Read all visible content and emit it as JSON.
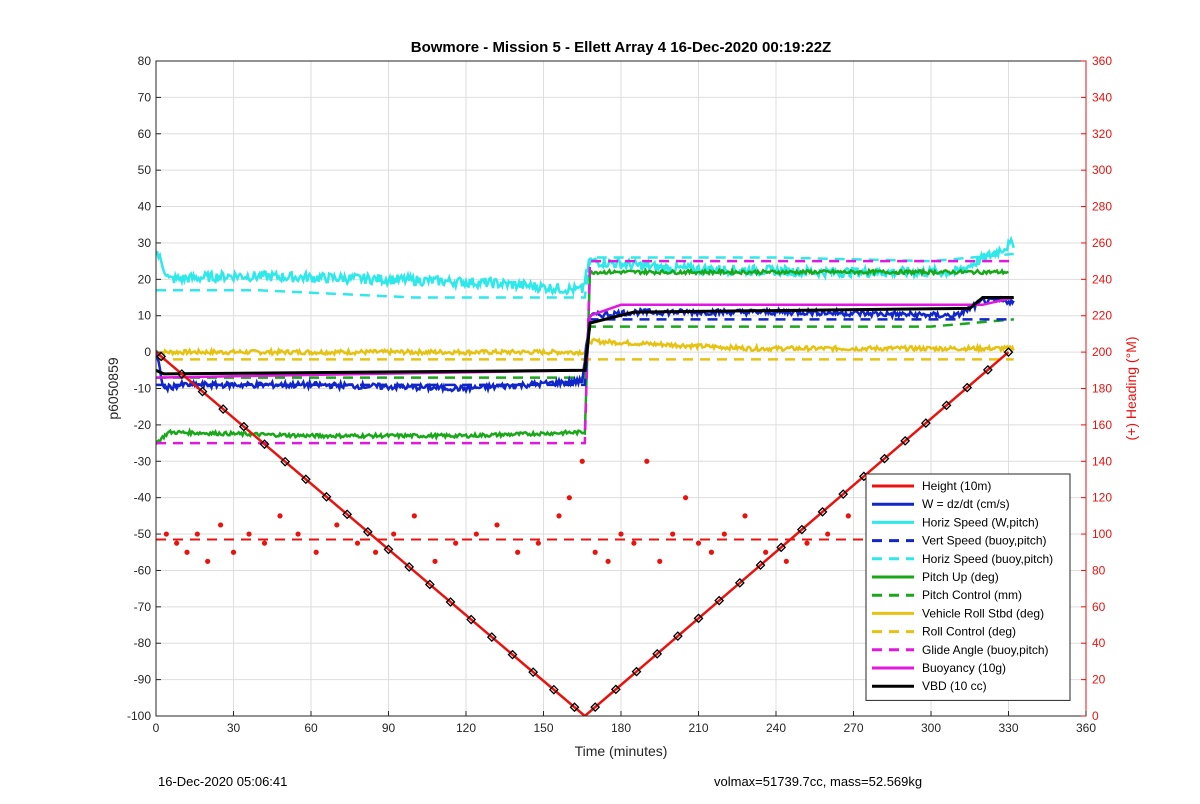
{
  "chart_data": {
    "type": "line",
    "title": "Bowmore - Mission 5 - Ellett Array 4 16-Dec-2020 00:19:22Z",
    "xlabel": "Time (minutes)",
    "ylabel": "p6050859",
    "ylabel_right": "(+) Heading (°M)",
    "xlim": [
      0,
      360
    ],
    "ylim": [
      -100,
      80
    ],
    "ylim_right": [
      0,
      360
    ],
    "xticks": [
      "0",
      "30",
      "60",
      "90",
      "120",
      "150",
      "180",
      "210",
      "240",
      "270",
      "300",
      "330",
      "360"
    ],
    "yticks": [
      "-100",
      "-90",
      "-80",
      "-70",
      "-60",
      "-50",
      "-40",
      "-30",
      "-20",
      "-10",
      "0",
      "10",
      "20",
      "30",
      "40",
      "50",
      "60",
      "70",
      "80"
    ],
    "yticks_right": [
      "0",
      "20",
      "40",
      "60",
      "80",
      "100",
      "120",
      "140",
      "160",
      "180",
      "200",
      "220",
      "240",
      "260",
      "280",
      "300",
      "320",
      "340",
      "360"
    ],
    "grid": true,
    "legend_position": "lower-right",
    "legend": [
      {
        "label": "Height (10m)",
        "color": "#e8130f",
        "style": "solid"
      },
      {
        "label": "W = dz/dt (cm/s)",
        "color": "#1026c8",
        "style": "solid"
      },
      {
        "label": "Horiz Speed (W,pitch)",
        "color": "#2ee8ea",
        "style": "solid"
      },
      {
        "label": "Vert Speed (buoy,pitch)",
        "color": "#1026c8",
        "style": "dashed"
      },
      {
        "label": "Horiz Speed (buoy,pitch)",
        "color": "#2ee8ea",
        "style": "dashed"
      },
      {
        "label": "Pitch Up (deg)",
        "color": "#1aa81a",
        "style": "solid"
      },
      {
        "label": "Pitch Control (mm)",
        "color": "#1aa81a",
        "style": "dashed"
      },
      {
        "label": "Vehicle Roll Stbd (deg)",
        "color": "#e6c212",
        "style": "solid"
      },
      {
        "label": "Roll Control (deg)",
        "color": "#e6c212",
        "style": "dashed"
      },
      {
        "label": "Glide Angle (buoy,pitch)",
        "color": "#e018e0",
        "style": "dashed"
      },
      {
        "label": "Buoyancy (10g)",
        "color": "#e018e0",
        "style": "solid"
      },
      {
        "label": "VBD (10 cc)",
        "color": "#000000",
        "style": "solid"
      }
    ],
    "series": [
      {
        "name": "Height (10m)",
        "axis": "left",
        "x": [
          0,
          166,
          330
        ],
        "y": [
          0,
          -100,
          0
        ]
      },
      {
        "name": "W = dz/dt (cm/s)",
        "axis": "left",
        "x": [
          0,
          3,
          10,
          60,
          120,
          165,
          168,
          185,
          250,
          310,
          320,
          332
        ],
        "y": [
          0,
          -10,
          -9,
          -9,
          -10,
          -8,
          10,
          11,
          11,
          10,
          14,
          14
        ]
      },
      {
        "name": "Horiz Speed (W,pitch)",
        "axis": "left",
        "x": [
          0,
          5,
          30,
          90,
          130,
          165,
          168,
          200,
          260,
          310,
          332
        ],
        "y": [
          28,
          20,
          21,
          20,
          19,
          17,
          25,
          23,
          22,
          22,
          30
        ]
      },
      {
        "name": "Vert Speed (buoy,pitch)",
        "axis": "left",
        "x": [
          0,
          166,
          168,
          332
        ],
        "y": [
          -9,
          -9,
          9,
          9
        ]
      },
      {
        "name": "Horiz Speed (buoy,pitch)",
        "axis": "left",
        "x": [
          0,
          40,
          100,
          166,
          168,
          240,
          300,
          332
        ],
        "y": [
          17,
          17,
          15,
          15,
          26,
          26,
          25,
          27
        ]
      },
      {
        "name": "Pitch Up (deg)",
        "axis": "left",
        "x": [
          0,
          5,
          60,
          120,
          166,
          168,
          200,
          260,
          330
        ],
        "y": [
          -25,
          -22,
          -23,
          -23,
          -22,
          22,
          22,
          22,
          22
        ]
      },
      {
        "name": "Pitch Control (mm)",
        "axis": "left",
        "x": [
          0,
          166,
          168,
          240,
          300,
          332
        ],
        "y": [
          -7,
          -7,
          7,
          7,
          7,
          9
        ]
      },
      {
        "name": "Vehicle Roll Stbd (deg)",
        "axis": "left",
        "x": [
          0,
          3,
          60,
          120,
          166,
          168,
          230,
          300,
          332
        ],
        "y": [
          0,
          0,
          0,
          0,
          0,
          3,
          1,
          1,
          1
        ]
      },
      {
        "name": "Roll Control (deg)",
        "axis": "left",
        "x": [
          0,
          166,
          168,
          332
        ],
        "y": [
          -2,
          -2,
          -2,
          -2
        ]
      },
      {
        "name": "Glide Angle (buoy,pitch)",
        "axis": "left",
        "x": [
          0,
          166,
          168,
          332
        ],
        "y": [
          -25,
          -25,
          25,
          25
        ]
      },
      {
        "name": "Buoyancy (10g)",
        "axis": "left",
        "x": [
          0,
          166,
          168,
          180,
          320,
          332
        ],
        "y": [
          -7,
          -5,
          10,
          13,
          13,
          15
        ]
      },
      {
        "name": "VBD (10 cc)",
        "axis": "left",
        "x": [
          0,
          3,
          166,
          168,
          185,
          315,
          320,
          332
        ],
        "y": [
          -5,
          -6,
          -5,
          8,
          11,
          12,
          15,
          15
        ]
      },
      {
        "name": "Heading",
        "axis": "right",
        "type": "scatter",
        "x": [
          4,
          8,
          12,
          16,
          20,
          25,
          30,
          36,
          42,
          48,
          55,
          62,
          70,
          78,
          85,
          92,
          100,
          108,
          116,
          124,
          132,
          140,
          148,
          156,
          160,
          165,
          170,
          175,
          180,
          185,
          190,
          195,
          200,
          205,
          210,
          215,
          220,
          228,
          236,
          244,
          252,
          260,
          268,
          276,
          284,
          292,
          300,
          308,
          316,
          324
        ],
        "y": [
          100,
          95,
          90,
          100,
          85,
          105,
          90,
          100,
          95,
          110,
          100,
          90,
          105,
          95,
          90,
          100,
          110,
          85,
          95,
          100,
          105,
          90,
          95,
          110,
          120,
          140,
          90,
          85,
          100,
          95,
          140,
          85,
          100,
          120,
          95,
          90,
          100,
          110,
          90,
          85,
          95,
          100,
          110,
          95,
          100,
          90,
          95,
          105,
          100,
          90
        ]
      },
      {
        "name": "Heading reference",
        "axis": "right",
        "type": "dashed",
        "x": [
          0,
          330
        ],
        "y": [
          97,
          97
        ]
      }
    ],
    "colors": {
      "height": "#e8130f",
      "w": "#1026c8",
      "horiz": "#2ee8ea",
      "pitch": "#1aa81a",
      "roll": "#e6c212",
      "buoy": "#e018e0",
      "vbd": "#000000",
      "right_axis": "#e8130f"
    }
  },
  "footer": {
    "left": "16-Dec-2020 05:06:41",
    "right": "volmax=51739.7cc, mass=52.569kg"
  }
}
